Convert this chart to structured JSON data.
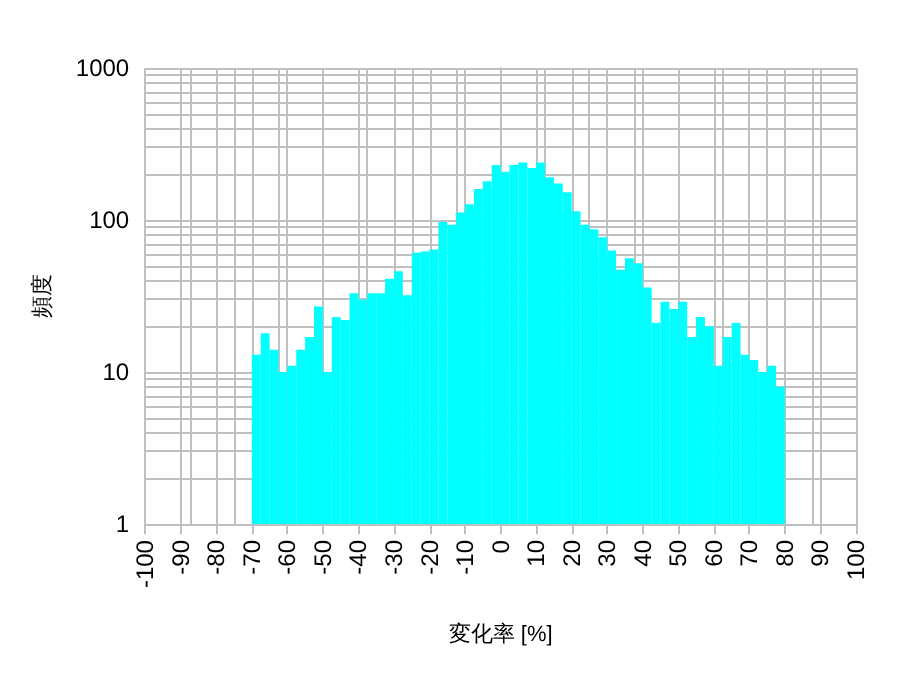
{
  "chart_data": {
    "type": "histogram",
    "xlabel": "変化率 [%]",
    "ylabel": "頻度",
    "color": "#00ffff",
    "bins": [
      -70,
      -67.5,
      -65,
      -62.5,
      -60,
      -57.5,
      -55,
      -52.5,
      -50,
      -47.5,
      -45,
      -42.5,
      -40,
      -37.5,
      -35,
      -32.5,
      -30,
      -27.5,
      -25,
      -22.5,
      -20,
      -17.5,
      -15,
      -12.5,
      -10,
      -7.5,
      -5,
      -2.5,
      0,
      2.5,
      5,
      7.5,
      10,
      12.5,
      15,
      17.5,
      20,
      22.5,
      25,
      27.5,
      30,
      32.5,
      35,
      37.5,
      40,
      42.5,
      45,
      47.5,
      50,
      52.5,
      55,
      57.5,
      60,
      62.5,
      65,
      67.5,
      70,
      72.5,
      75,
      77.5,
      80
    ],
    "values": [
      13,
      18,
      14,
      10,
      11,
      14,
      17,
      27,
      10,
      23,
      22,
      33,
      30,
      33,
      33,
      41,
      46,
      32,
      61,
      62,
      64,
      97,
      93,
      112,
      127,
      160,
      180,
      230,
      208,
      230,
      239,
      220,
      239,
      191,
      174,
      152,
      114,
      93,
      87,
      77,
      63,
      47,
      56,
      52,
      36,
      21,
      29,
      26,
      29,
      17,
      23,
      20,
      11,
      17,
      21,
      13,
      12,
      10,
      11,
      8
    ],
    "xlim": [
      -100,
      100
    ],
    "xticks": [
      -100,
      -90,
      -80,
      -70,
      -60,
      -50,
      -40,
      -30,
      -20,
      -10,
      0,
      10,
      20,
      30,
      40,
      50,
      60,
      70,
      80,
      90,
      100
    ],
    "ylim": [
      1,
      1000
    ],
    "yticks": [
      1,
      10,
      100,
      1000
    ],
    "log": true,
    "grid": true
  }
}
